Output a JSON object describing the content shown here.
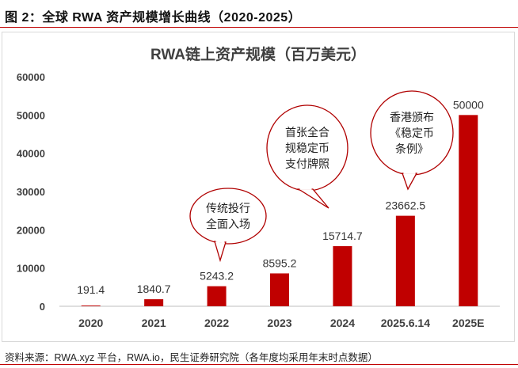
{
  "figure": {
    "caption": "图 2：全球 RWA 资产规模增长曲线（2020-2025）",
    "source": "资料来源：RWA.xyz 平台，RWA.io，民生证券研究院（各年度均采用年末时点数据）"
  },
  "colors": {
    "bar": "#c00000",
    "bubble_border": "#b00000",
    "axis": "#bfbfbf",
    "text": "#404040"
  },
  "chart_data": {
    "type": "bar",
    "title": "RWA链上资产规模（百万美元）",
    "xlabel": "",
    "ylabel": "",
    "categories": [
      "2020",
      "2021",
      "2022",
      "2023",
      "2024",
      "2025.6.14",
      "2025E"
    ],
    "values": [
      191.4,
      1840.7,
      5243.2,
      8595.2,
      15714.7,
      23662.5,
      50000
    ],
    "data_labels": [
      "191.4",
      "1840.7",
      "5243.2",
      "8595.2",
      "15714.7",
      "23662.5",
      "50000"
    ],
    "ylim": [
      0,
      60000
    ],
    "yticks": [
      0,
      10000,
      20000,
      30000,
      40000,
      50000,
      60000
    ],
    "grid": false,
    "legend": "none",
    "annotations": [
      {
        "lines": [
          "传统投行",
          "全面入场"
        ],
        "category": "2022"
      },
      {
        "lines": [
          "首张全合",
          "规稳定币",
          "支付牌照"
        ],
        "category": "2024"
      },
      {
        "lines": [
          "香港颁布",
          "《稳定币",
          "条例》"
        ],
        "category": "2025.6.14"
      }
    ]
  }
}
